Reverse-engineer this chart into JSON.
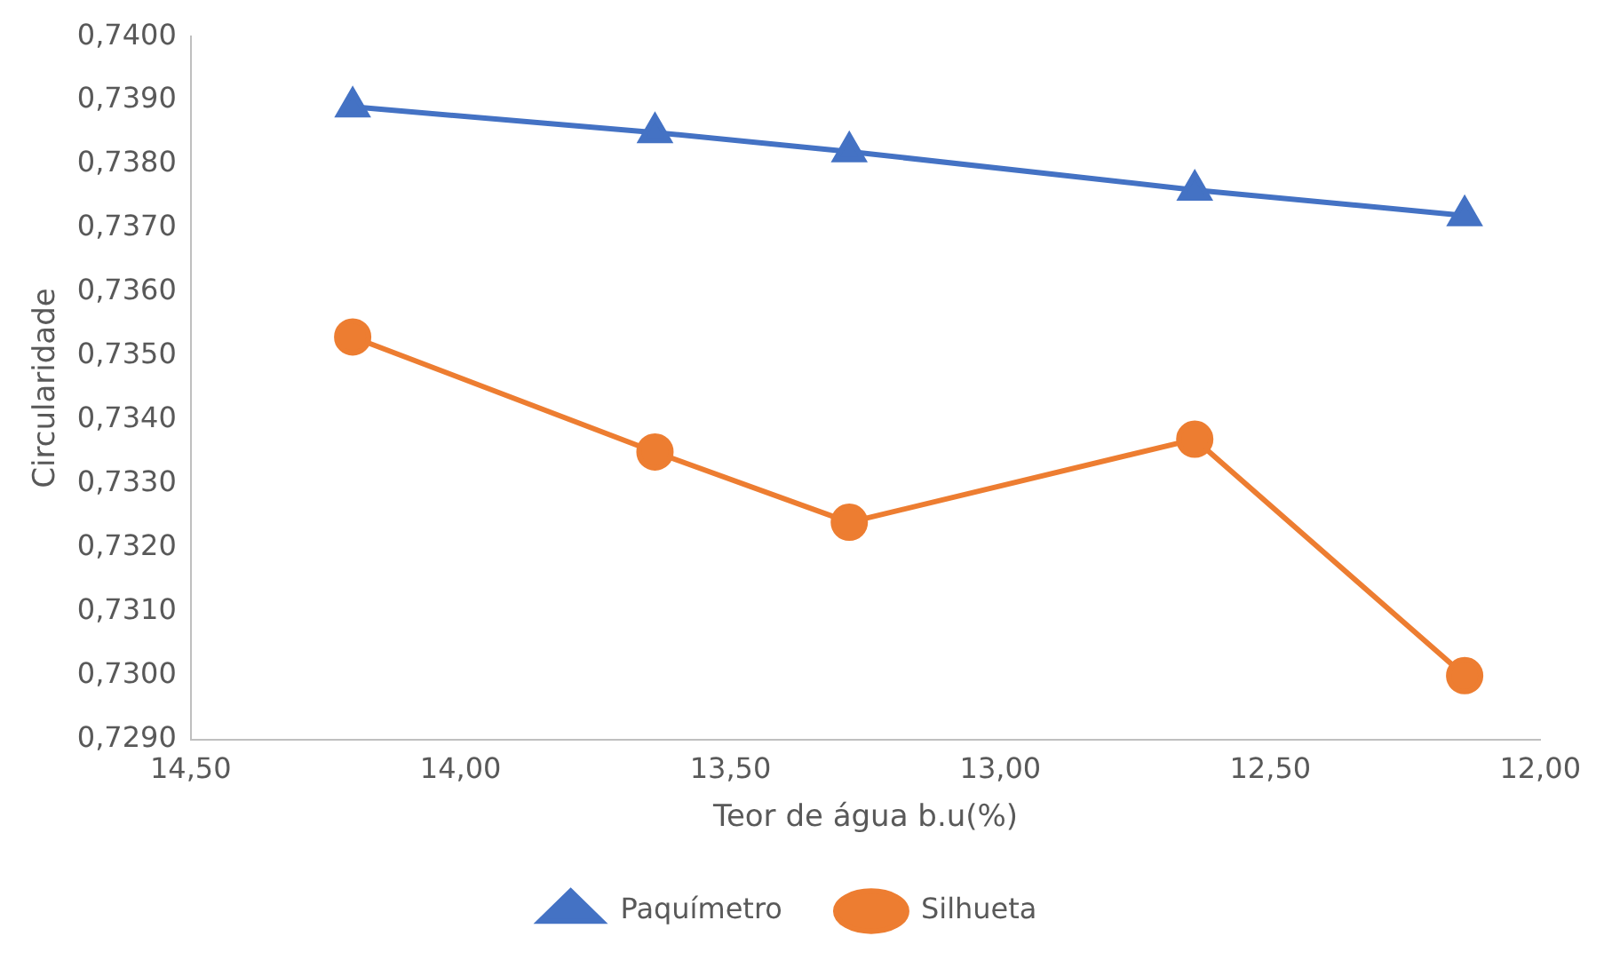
{
  "chart_data": {
    "type": "line",
    "xlabel": "Teor de água b.u(%)",
    "ylabel": "Circularidade",
    "x": [
      14.2,
      13.64,
      13.28,
      12.64,
      12.14
    ],
    "series": [
      {
        "name": "Paquímetro",
        "color": "#4472c4",
        "marker": "triangle",
        "values": [
          0.7389,
          0.7385,
          0.7382,
          0.7376,
          0.7372
        ]
      },
      {
        "name": "Silhueta",
        "color": "#ed7d31",
        "marker": "circle",
        "values": [
          0.7353,
          0.7335,
          0.7324,
          0.7337,
          0.73
        ]
      }
    ],
    "xlim": [
      14.5,
      12
    ],
    "xticks": [
      {
        "value": 14.5,
        "label": "14,50"
      },
      {
        "value": 14,
        "label": "14,00"
      },
      {
        "value": 13.5,
        "label": "13,50"
      },
      {
        "value": 13,
        "label": "13,00"
      },
      {
        "value": 12.5,
        "label": "12,50"
      },
      {
        "value": 12,
        "label": "12,00"
      }
    ],
    "ylim": [
      0.729,
      0.74
    ],
    "yticks": [
      {
        "value": 0.729,
        "label": "0,7290"
      },
      {
        "value": 0.73,
        "label": "0,7300"
      },
      {
        "value": 0.731,
        "label": "0,7310"
      },
      {
        "value": 0.732,
        "label": "0,7320"
      },
      {
        "value": 0.733,
        "label": "0,7330"
      },
      {
        "value": 0.734,
        "label": "0,7340"
      },
      {
        "value": 0.735,
        "label": "0,7350"
      },
      {
        "value": 0.736,
        "label": "0,7360"
      },
      {
        "value": 0.737,
        "label": "0,7370"
      },
      {
        "value": 0.738,
        "label": "0,7380"
      },
      {
        "value": 0.739,
        "label": "0,7390"
      },
      {
        "value": 0.74,
        "label": "0,7400"
      }
    ],
    "grid": false,
    "legend": "bottom",
    "line_style": "solid"
  }
}
